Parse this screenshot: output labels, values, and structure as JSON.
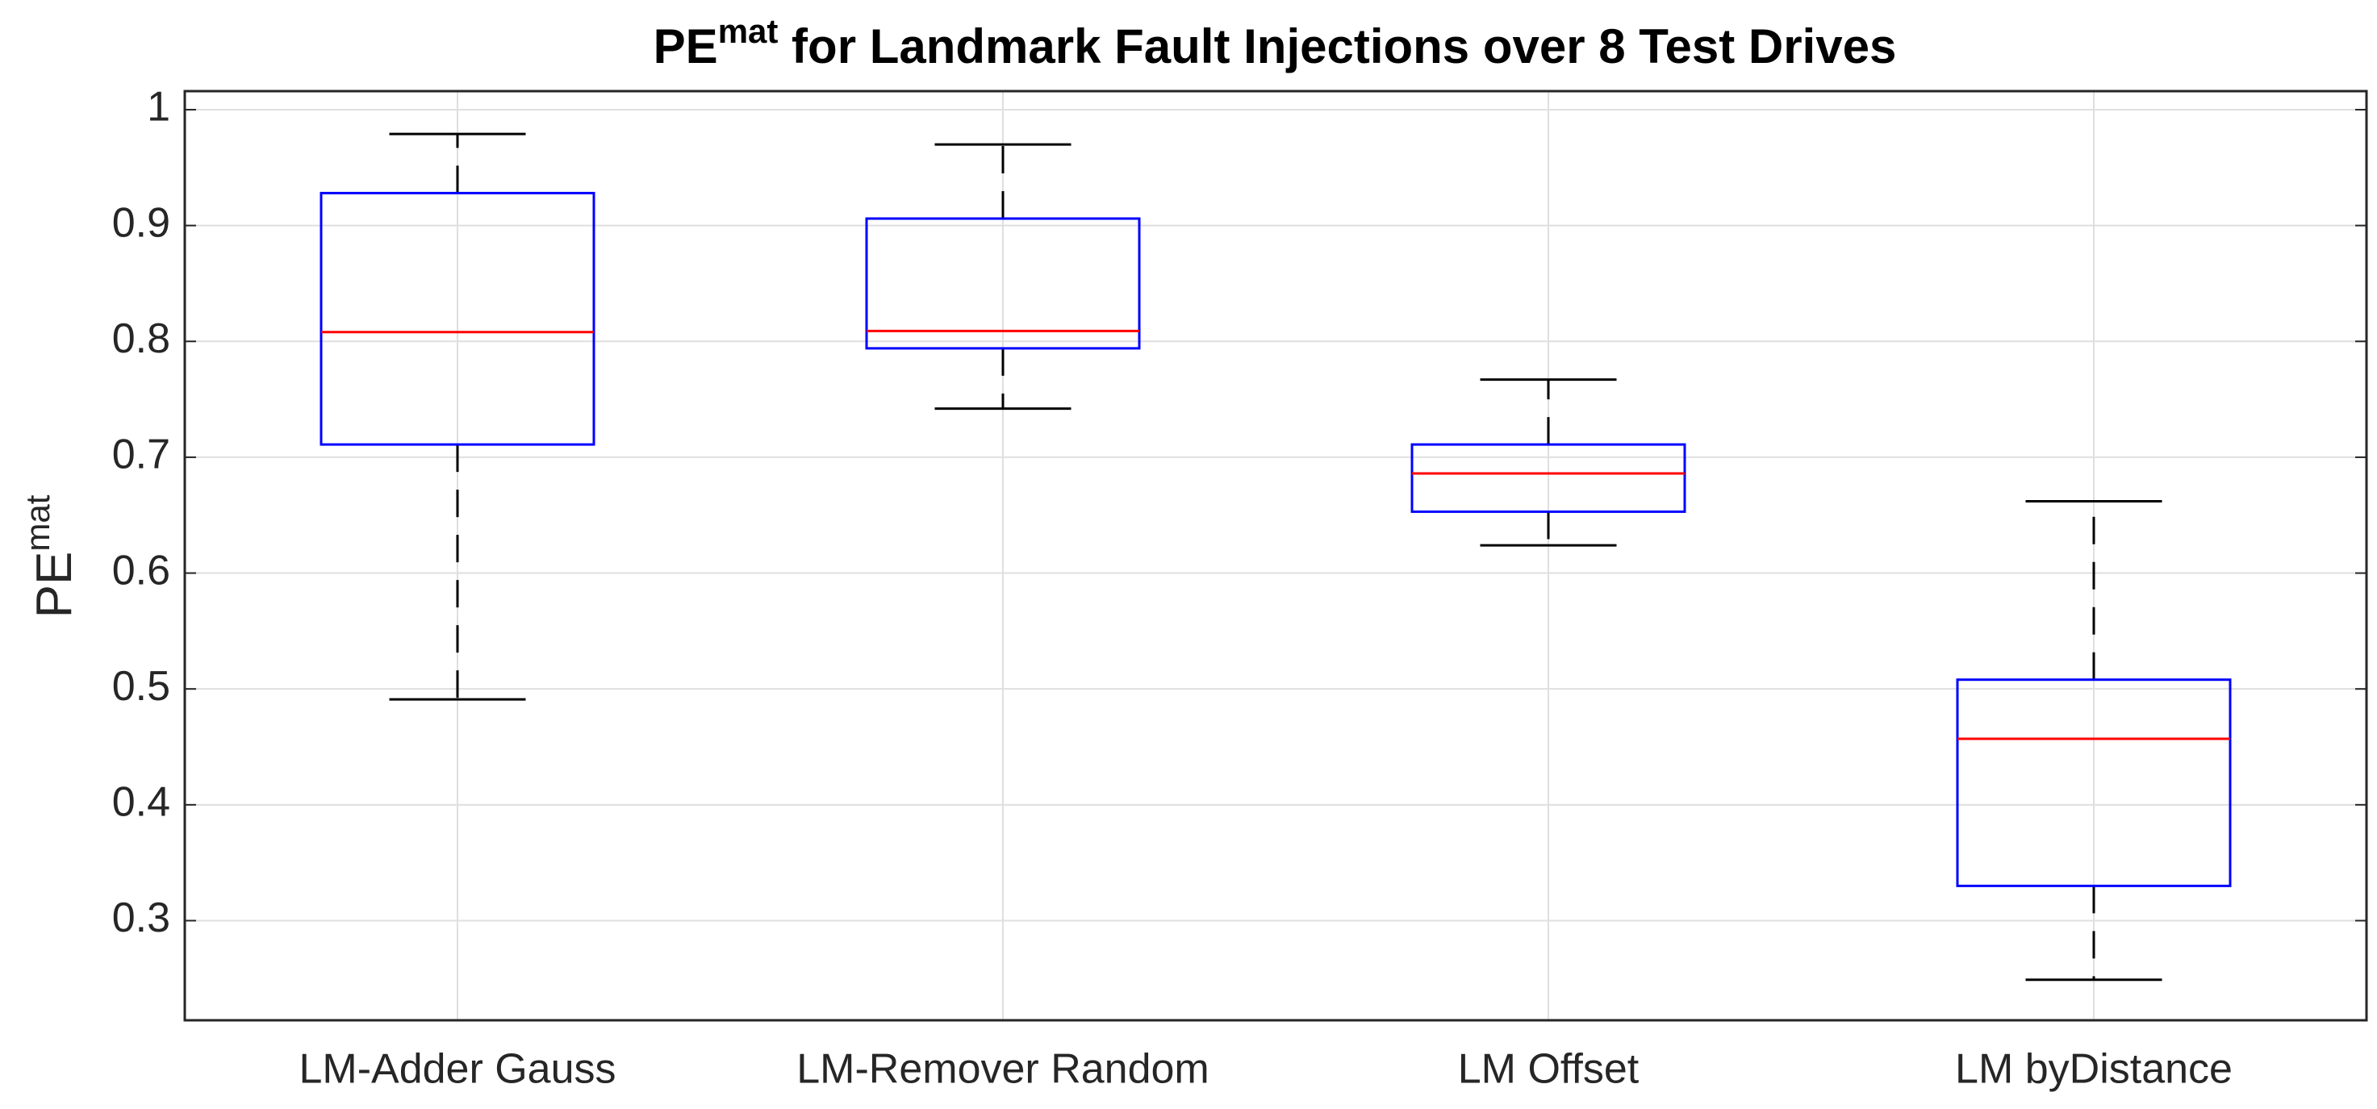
{
  "chart_data": {
    "type": "box",
    "title": [
      "PE",
      "mat",
      " for Landmark Fault Injections over 8 Test Drives"
    ],
    "ylabel": [
      "PE",
      "mat"
    ],
    "categories": [
      "LM-Adder Gauss",
      "LM-Remover Random",
      "LM Offset",
      "LM byDistance"
    ],
    "boxes": [
      {
        "whisker_low": 0.491,
        "q1": 0.711,
        "median": 0.808,
        "q3": 0.928,
        "whisker_high": 0.979
      },
      {
        "whisker_low": 0.742,
        "q1": 0.794,
        "median": 0.809,
        "q3": 0.906,
        "whisker_high": 0.97
      },
      {
        "whisker_low": 0.624,
        "q1": 0.653,
        "median": 0.686,
        "q3": 0.711,
        "whisker_high": 0.767
      },
      {
        "whisker_low": 0.249,
        "q1": 0.33,
        "median": 0.457,
        "q3": 0.508,
        "whisker_high": 0.662
      }
    ],
    "box_color": "#0000ff",
    "median_color": "#ff0000",
    "whisker_color": "#000000",
    "ylim": [
      0.214,
      1.016
    ],
    "yticks": [
      0.3,
      0.4,
      0.5,
      0.6,
      0.7,
      0.8,
      0.9,
      1
    ],
    "grid": true
  }
}
